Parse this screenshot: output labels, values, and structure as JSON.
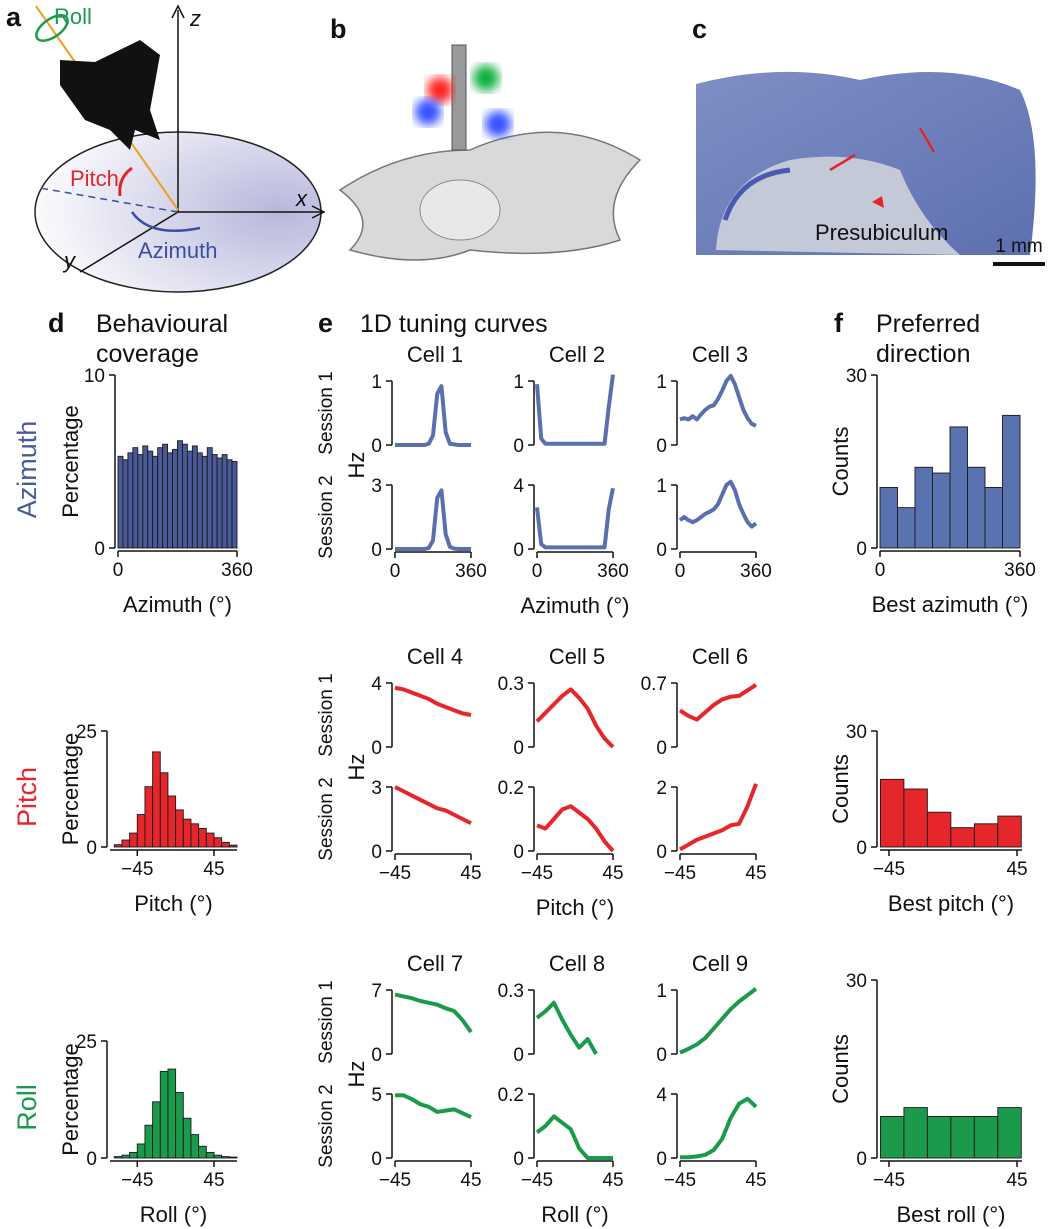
{
  "panels": {
    "a": {
      "label": "a",
      "roll": "Roll",
      "z": "z",
      "pitch": "Pitch",
      "x": "x",
      "y": "y",
      "azimuth": "Azimuth"
    },
    "b": {
      "label": "b"
    },
    "c": {
      "label": "c",
      "region": "Presubiculum",
      "scale": "1 mm"
    }
  },
  "chart_data": [
    {
      "type": "histogram",
      "panel_label": "d",
      "title": [
        "Behavioural",
        "coverage"
      ],
      "row_label": "Azimuth",
      "ylabel": "Percentage",
      "xlabel": "Azimuth (°)",
      "color": "#4a5a98",
      "bins": [
        0,
        15,
        30,
        45,
        60,
        75,
        90,
        105,
        120,
        135,
        150,
        165,
        180,
        195,
        210,
        225,
        240,
        255,
        270,
        285,
        300,
        315,
        330,
        345,
        360
      ],
      "values": [
        5.3,
        5.1,
        5.5,
        5.8,
        5.4,
        5.9,
        5.6,
        5.3,
        5.8,
        6.0,
        5.5,
        5.7,
        6.2,
        6.0,
        5.6,
        5.9,
        5.5,
        5.3,
        5.8,
        5.4,
        5.2,
        5.4,
        5.1,
        5.0
      ],
      "xlim": [
        0,
        360
      ],
      "xticks": [
        0,
        360
      ],
      "ylim": [
        0,
        10
      ],
      "yticks": [
        0,
        10
      ]
    },
    {
      "type": "histogram",
      "row_label": "Pitch",
      "ylabel": "Percentage",
      "xlabel": "Pitch (°)",
      "color": "#e5262b",
      "bins": [
        -72,
        -63,
        -54,
        -45,
        -36,
        -27,
        -18,
        -9,
        0,
        9,
        18,
        27,
        36,
        45,
        54,
        63,
        72
      ],
      "values": [
        0.5,
        1.5,
        3,
        7,
        13,
        20.5,
        16,
        11,
        8,
        6,
        5,
        4,
        3,
        2,
        1,
        0.4
      ],
      "xlim": [
        -77,
        72
      ],
      "xticks": [
        {
          "value": -45,
          "label": "−45"
        },
        45
      ],
      "ylim": [
        0,
        25
      ],
      "yticks": [
        0,
        25
      ]
    },
    {
      "type": "histogram",
      "row_label": "Roll",
      "ylabel": "Percentage",
      "xlabel": "Roll (°)",
      "color": "#1c9a4b",
      "bins": [
        -72,
        -63,
        -54,
        -45,
        -36,
        -27,
        -18,
        -9,
        0,
        9,
        18,
        27,
        36,
        45,
        54,
        63,
        72
      ],
      "values": [
        0.3,
        0.6,
        1.2,
        3,
        7,
        12,
        18.5,
        19,
        14,
        8.5,
        5,
        2.5,
        1.2,
        0.6,
        0.3,
        0.2
      ],
      "xlim": [
        -77,
        72
      ],
      "xticks": [
        {
          "value": -45,
          "label": "−45"
        },
        45
      ],
      "ylim": [
        0,
        25
      ],
      "yticks": [
        0,
        25
      ]
    },
    {
      "type": "line",
      "panel_label": "e",
      "panel_title": "1D tuning curves",
      "title": "Cell 1",
      "session_label": "Session 1",
      "ylabel": "Hz",
      "color": "#5b6fae",
      "x": [
        0,
        20,
        40,
        60,
        80,
        100,
        120,
        140,
        160,
        180,
        200,
        220,
        240,
        260,
        280,
        300,
        320,
        340,
        360
      ],
      "values": [
        0,
        0,
        0,
        0,
        0,
        0,
        0,
        0,
        0.02,
        0.15,
        0.8,
        0.92,
        0.2,
        0.02,
        0.01,
        0,
        0,
        0,
        0
      ],
      "xlim": [
        0,
        360
      ],
      "ylim": [
        0,
        1
      ],
      "yticks": [
        0,
        1
      ]
    },
    {
      "type": "line",
      "session_label": "Session 2",
      "color": "#5b6fae",
      "x": [
        0,
        20,
        40,
        60,
        80,
        100,
        120,
        140,
        160,
        180,
        200,
        220,
        240,
        260,
        280,
        300,
        320,
        340,
        360
      ],
      "values": [
        0,
        0,
        0,
        0,
        0,
        0,
        0,
        0,
        0.05,
        0.4,
        2.4,
        2.75,
        0.7,
        0.1,
        0.02,
        0,
        0,
        0,
        0
      ],
      "xlim": [
        0,
        360
      ],
      "xticks": [
        0,
        360
      ],
      "ylim": [
        0,
        3
      ],
      "yticks": [
        0,
        3
      ]
    },
    {
      "type": "line",
      "title": "Cell 2",
      "color": "#5b6fae",
      "x": [
        0,
        20,
        40,
        60,
        80,
        100,
        120,
        140,
        160,
        180,
        200,
        220,
        240,
        260,
        280,
        300,
        320,
        340,
        360
      ],
      "values": [
        0.95,
        0.1,
        0.02,
        0.02,
        0.02,
        0.02,
        0.02,
        0.02,
        0.02,
        0.02,
        0.02,
        0.02,
        0.02,
        0.02,
        0.02,
        0.02,
        0.02,
        0.6,
        1.1
      ],
      "xlim": [
        0,
        360
      ],
      "ylim": [
        0,
        1
      ],
      "yticks": [
        0,
        1
      ]
    },
    {
      "type": "line",
      "xlabel": "Azimuth (°)",
      "color": "#5b6fae",
      "x": [
        0,
        20,
        40,
        60,
        80,
        100,
        120,
        140,
        160,
        180,
        200,
        220,
        240,
        260,
        280,
        300,
        320,
        340,
        360
      ],
      "values": [
        2.6,
        0.3,
        0.1,
        0.1,
        0.1,
        0.1,
        0.1,
        0.1,
        0.1,
        0.1,
        0.1,
        0.1,
        0.1,
        0.1,
        0.1,
        0.1,
        0.1,
        2.5,
        3.8
      ],
      "xlim": [
        0,
        360
      ],
      "xticks": [
        0,
        360
      ],
      "ylim": [
        0,
        4
      ],
      "yticks": [
        0,
        4
      ]
    },
    {
      "type": "line",
      "title": "Cell 3",
      "color": "#5b6fae",
      "x": [
        0,
        20,
        40,
        60,
        80,
        100,
        120,
        140,
        160,
        180,
        200,
        220,
        240,
        260,
        280,
        300,
        320,
        340,
        360
      ],
      "values": [
        0.4,
        0.42,
        0.4,
        0.45,
        0.4,
        0.48,
        0.55,
        0.6,
        0.62,
        0.72,
        0.85,
        1.0,
        1.08,
        0.95,
        0.75,
        0.55,
        0.42,
        0.33,
        0.3
      ],
      "xlim": [
        0,
        360
      ],
      "ylim": [
        0,
        1
      ],
      "yticks": [
        0,
        1
      ]
    },
    {
      "type": "line",
      "color": "#5b6fae",
      "x": [
        0,
        20,
        40,
        60,
        80,
        100,
        120,
        140,
        160,
        180,
        200,
        220,
        240,
        260,
        280,
        300,
        320,
        340,
        360
      ],
      "values": [
        0.45,
        0.5,
        0.45,
        0.42,
        0.45,
        0.5,
        0.55,
        0.58,
        0.62,
        0.7,
        0.85,
        1.0,
        1.05,
        0.92,
        0.7,
        0.55,
        0.42,
        0.35,
        0.4
      ],
      "xlim": [
        0,
        360
      ],
      "xticks": [
        0,
        360
      ],
      "ylim": [
        0,
        1
      ],
      "yticks": [
        0,
        1
      ]
    },
    {
      "type": "line",
      "title": "Cell 4",
      "session_label": "Session 1",
      "ylabel": "Hz",
      "color": "#e5262b",
      "x": [
        -45,
        -35,
        -25,
        -15,
        -5,
        5,
        15,
        25,
        35,
        45
      ],
      "values": [
        3.7,
        3.6,
        3.4,
        3.2,
        3.0,
        2.7,
        2.5,
        2.3,
        2.1,
        2.0
      ],
      "xlim": [
        -45,
        45
      ],
      "ylim": [
        0,
        4
      ],
      "yticks": [
        0,
        4
      ]
    },
    {
      "type": "line",
      "session_label": "Session 2",
      "color": "#e5262b",
      "x": [
        -45,
        -35,
        -25,
        -15,
        -5,
        5,
        15,
        25,
        35,
        45
      ],
      "values": [
        3.0,
        2.8,
        2.6,
        2.4,
        2.2,
        2.0,
        1.9,
        1.7,
        1.5,
        1.3
      ],
      "xlim": [
        -45,
        45
      ],
      "xticks": [
        {
          "value": -45,
          "label": "−45"
        },
        45
      ],
      "ylim": [
        0,
        3
      ],
      "yticks": [
        0,
        3
      ]
    },
    {
      "type": "line",
      "title": "Cell 5",
      "color": "#e5262b",
      "x": [
        -45,
        -35,
        -25,
        -15,
        -5,
        5,
        15,
        25,
        35,
        45
      ],
      "values": [
        0.12,
        0.16,
        0.2,
        0.24,
        0.27,
        0.23,
        0.18,
        0.1,
        0.04,
        0.0
      ],
      "xlim": [
        -45,
        45
      ],
      "ylim": [
        0,
        0.3
      ],
      "yticks": [
        0,
        0.3
      ]
    },
    {
      "type": "line",
      "xlabel": "Pitch (°)",
      "color": "#e5262b",
      "x": [
        -45,
        -35,
        -25,
        -15,
        -5,
        5,
        15,
        25,
        35,
        45
      ],
      "values": [
        0.08,
        0.07,
        0.1,
        0.13,
        0.14,
        0.12,
        0.1,
        0.07,
        0.03,
        0.0
      ],
      "xlim": [
        -45,
        45
      ],
      "xticks": [
        {
          "value": -45,
          "label": "−45"
        },
        45
      ],
      "ylim": [
        0,
        0.2
      ],
      "yticks": [
        0,
        0.2
      ]
    },
    {
      "type": "line",
      "title": "Cell 6",
      "color": "#e5262b",
      "x": [
        -45,
        -35,
        -25,
        -15,
        -5,
        5,
        15,
        25,
        35,
        45
      ],
      "values": [
        0.4,
        0.34,
        0.3,
        0.38,
        0.46,
        0.52,
        0.55,
        0.56,
        0.62,
        0.68
      ],
      "xlim": [
        -45,
        45
      ],
      "ylim": [
        0,
        0.7
      ],
      "yticks": [
        0,
        0.7
      ]
    },
    {
      "type": "line",
      "color": "#e5262b",
      "x": [
        -45,
        -35,
        -25,
        -15,
        -5,
        5,
        15,
        25,
        35,
        45
      ],
      "values": [
        0.05,
        0.2,
        0.35,
        0.45,
        0.55,
        0.65,
        0.8,
        0.85,
        1.4,
        2.1
      ],
      "xlim": [
        -45,
        45
      ],
      "xticks": [
        {
          "value": -45,
          "label": "−45"
        },
        45
      ],
      "ylim": [
        0,
        2
      ],
      "yticks": [
        0,
        2
      ]
    },
    {
      "type": "line",
      "title": "Cell 7",
      "session_label": "Session 1",
      "ylabel": "Hz",
      "color": "#1c9a4b",
      "x": [
        -45,
        -35,
        -25,
        -15,
        -5,
        5,
        15,
        25,
        35,
        45
      ],
      "values": [
        6.5,
        6.3,
        6.1,
        5.8,
        5.6,
        5.4,
        5.0,
        4.7,
        3.7,
        2.4
      ],
      "xlim": [
        -45,
        45
      ],
      "ylim": [
        0,
        7
      ],
      "yticks": [
        0,
        7
      ]
    },
    {
      "type": "line",
      "session_label": "Session 2",
      "color": "#1c9a4b",
      "x": [
        -45,
        -35,
        -25,
        -15,
        -5,
        5,
        15,
        25,
        35,
        45
      ],
      "values": [
        4.9,
        4.9,
        4.6,
        4.2,
        4.0,
        3.6,
        3.7,
        3.8,
        3.5,
        3.2
      ],
      "xlim": [
        -45,
        45
      ],
      "xticks": [
        {
          "value": -45,
          "label": "−45"
        },
        45
      ],
      "ylim": [
        0,
        5
      ],
      "yticks": [
        0,
        5
      ]
    },
    {
      "type": "line",
      "title": "Cell 8",
      "color": "#1c9a4b",
      "x": [
        -45,
        -35,
        -25,
        -15,
        -5,
        5,
        15,
        25,
        35,
        45
      ],
      "values": [
        0.17,
        0.2,
        0.24,
        0.16,
        0.09,
        0.03,
        0.07,
        0.0,
        null,
        null
      ],
      "xlim": [
        -45,
        45
      ],
      "ylim": [
        0,
        0.3
      ],
      "yticks": [
        0,
        0.3
      ]
    },
    {
      "type": "line",
      "xlabel": "Roll (°)",
      "color": "#1c9a4b",
      "x": [
        -45,
        -35,
        -25,
        -15,
        -5,
        5,
        15,
        25,
        35,
        45
      ],
      "values": [
        0.08,
        0.1,
        0.13,
        0.11,
        0.09,
        0.03,
        0,
        0,
        0,
        0
      ],
      "xlim": [
        -45,
        45
      ],
      "xticks": [
        {
          "value": -45,
          "label": "−45"
        },
        45
      ],
      "ylim": [
        0,
        0.2
      ],
      "yticks": [
        0,
        0.2
      ]
    },
    {
      "type": "line",
      "title": "Cell 9",
      "color": "#1c9a4b",
      "x": [
        -45,
        -35,
        -25,
        -15,
        -5,
        5,
        15,
        25,
        35,
        45
      ],
      "values": [
        0.02,
        0.08,
        0.15,
        0.25,
        0.4,
        0.55,
        0.7,
        0.82,
        0.92,
        1.02
      ],
      "xlim": [
        -45,
        45
      ],
      "ylim": [
        0,
        1
      ],
      "yticks": [
        0,
        1
      ]
    },
    {
      "type": "line",
      "color": "#1c9a4b",
      "x": [
        -45,
        -35,
        -25,
        -15,
        -5,
        5,
        15,
        25,
        35,
        45
      ],
      "values": [
        0.05,
        0.05,
        0.1,
        0.2,
        0.5,
        1.2,
        2.5,
        3.4,
        3.7,
        3.2
      ],
      "xlim": [
        -45,
        45
      ],
      "xticks": [
        {
          "value": -45,
          "label": "−45"
        },
        45
      ],
      "ylim": [
        0,
        4
      ],
      "yticks": [
        0,
        4
      ]
    },
    {
      "type": "histogram",
      "panel_label": "f",
      "title": [
        "Preferred",
        "direction"
      ],
      "ylabel": "Counts",
      "xlabel": "Best azimuth (°)",
      "color": "#5a72b0",
      "bins": [
        0,
        45,
        90,
        135,
        180,
        225,
        270,
        315,
        360
      ],
      "values": [
        10.5,
        7,
        14,
        13,
        21,
        14,
        10.5,
        23
      ],
      "xlim": [
        0,
        360
      ],
      "xticks": [
        0,
        360
      ],
      "ylim": [
        0,
        30
      ],
      "yticks": [
        0,
        30
      ]
    },
    {
      "type": "histogram",
      "ylabel": "Counts",
      "xlabel": "Best pitch (°)",
      "color": "#e5262b",
      "bins": [
        -51,
        -34.5,
        -18,
        -1.5,
        15,
        31.5,
        48
      ],
      "values": [
        17.5,
        15,
        9,
        5,
        6,
        8
      ],
      "xlim": [
        -51.3,
        48.5
      ],
      "xticks": [
        {
          "value": -45,
          "label": "−45"
        },
        45
      ],
      "ylim": [
        0,
        30
      ],
      "yticks": [
        0,
        30
      ]
    },
    {
      "type": "histogram",
      "ylabel": "Counts",
      "xlabel": "Best roll (°)",
      "color": "#1c9a4b",
      "bins": [
        -51,
        -34.5,
        -18,
        -1.5,
        15,
        31.5,
        48
      ],
      "values": [
        7,
        8.5,
        7,
        7,
        7,
        8.5
      ],
      "xlim": [
        -51.3,
        48.5
      ],
      "xticks": [
        {
          "value": -45,
          "label": "−45"
        },
        45
      ],
      "ylim": [
        0,
        30
      ],
      "yticks": [
        0,
        30
      ]
    }
  ]
}
